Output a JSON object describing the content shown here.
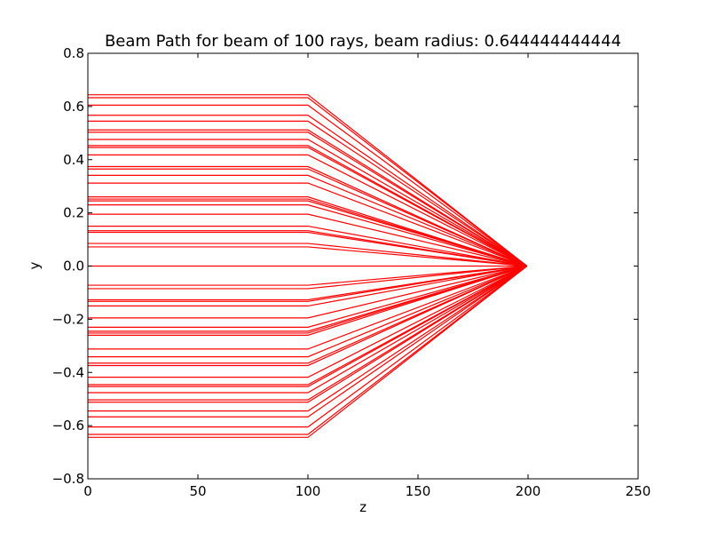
{
  "chart_data": {
    "type": "line",
    "title": "Beam Path for beam of 100 rays, beam radius: 0.644444444444",
    "xlabel": "z",
    "ylabel": "y",
    "xlim": [
      0,
      250
    ],
    "ylim": [
      -0.8,
      0.8
    ],
    "xticks": [
      "0",
      "50",
      "100",
      "150",
      "200",
      "250"
    ],
    "xtick_values": [
      0,
      50,
      100,
      150,
      200,
      250
    ],
    "yticks": [
      "−0.8",
      "−0.6",
      "−0.4",
      "−0.2",
      "0.0",
      "0.2",
      "0.4",
      "0.6",
      "0.8"
    ],
    "ytick_values": [
      -0.8,
      -0.6,
      -0.4,
      -0.2,
      0.0,
      0.2,
      0.4,
      0.6,
      0.8
    ],
    "grid": false,
    "line_color": "#ff0000",
    "ray_path_z": [
      0,
      100,
      199.5
    ],
    "ray_focus_y": 0,
    "ray_heights": [
      0.644,
      0.633,
      0.605,
      0.567,
      0.545,
      0.512,
      0.503,
      0.476,
      0.453,
      0.446,
      0.418,
      0.374,
      0.365,
      0.341,
      0.312,
      0.26,
      0.252,
      0.245,
      0.23,
      0.195,
      0.15,
      0.133,
      0.127,
      0.085,
      0.072,
      0.0,
      -0.072,
      -0.085,
      -0.127,
      -0.133,
      -0.15,
      -0.195,
      -0.23,
      -0.245,
      -0.252,
      -0.26,
      -0.312,
      -0.341,
      -0.365,
      -0.374,
      -0.418,
      -0.446,
      -0.453,
      -0.476,
      -0.503,
      -0.512,
      -0.545,
      -0.567,
      -0.605,
      -0.633,
      -0.644
    ]
  }
}
